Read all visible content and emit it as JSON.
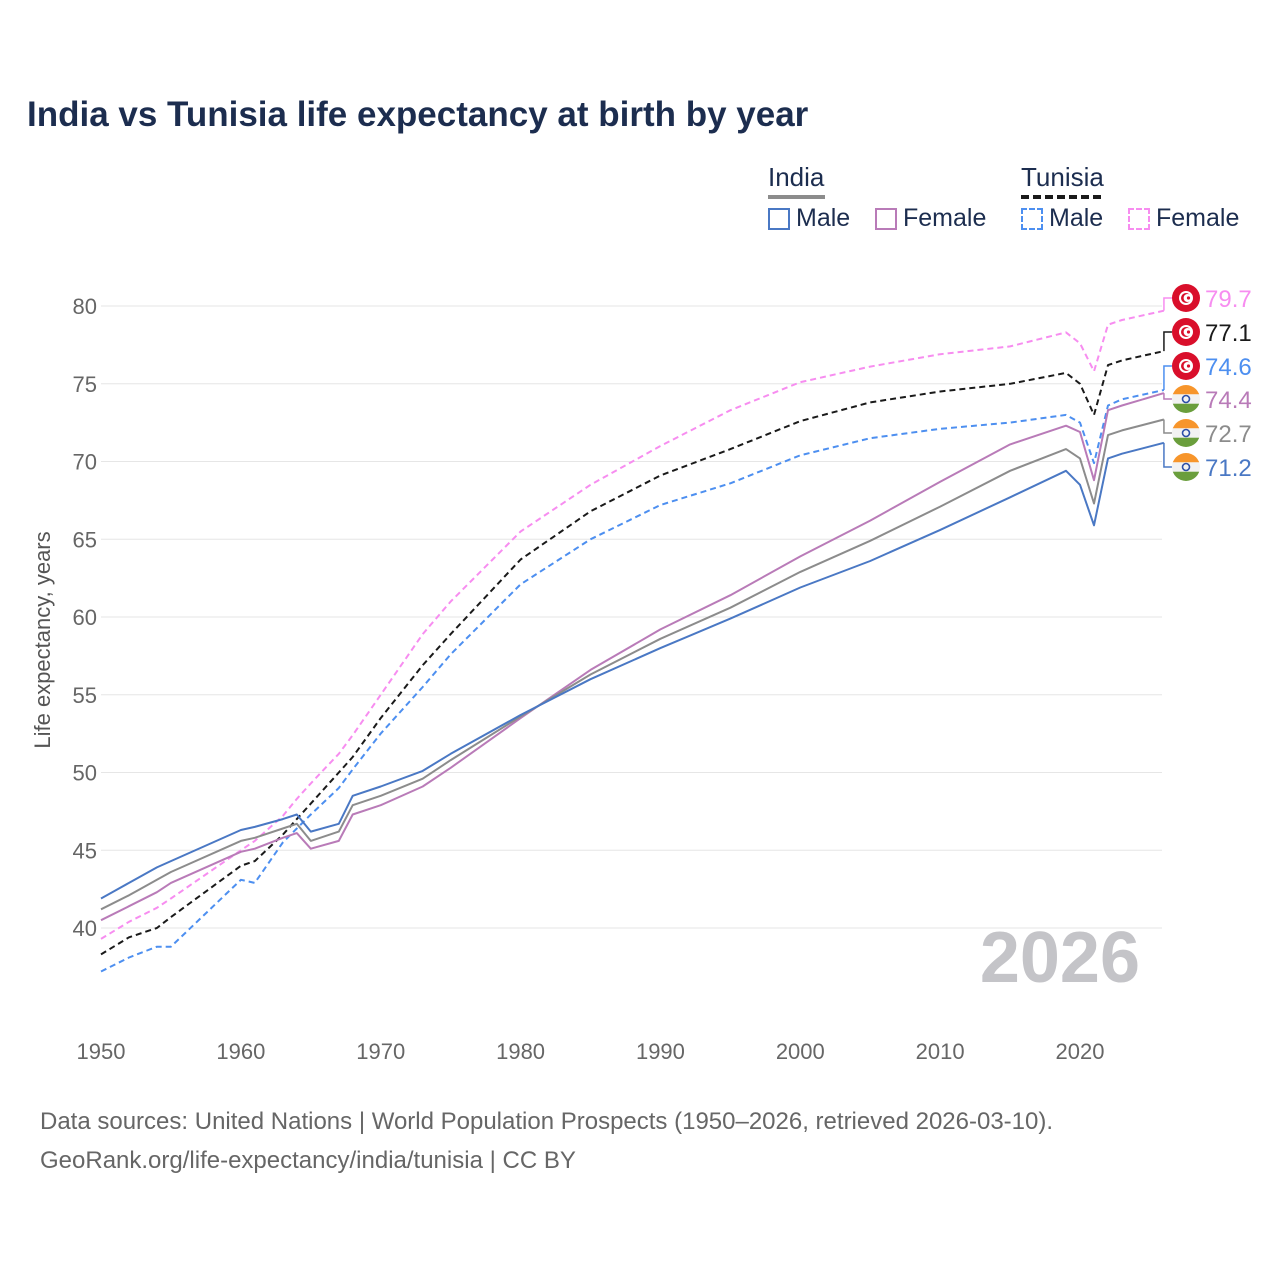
{
  "title": "India vs Tunisia life expectancy at birth by year",
  "legend": {
    "groups": [
      {
        "name": "India",
        "color": "#8c8c8c",
        "items": [
          {
            "label": "Male",
            "color": "#4a78c4"
          },
          {
            "label": "Female",
            "color": "#b97bb8"
          }
        ]
      },
      {
        "name": "Tunisia",
        "color": "#1a1a1a",
        "items": [
          {
            "label": "Male",
            "color": "#4d8ff0"
          },
          {
            "label": "Female",
            "color": "#f78df0"
          }
        ]
      }
    ]
  },
  "year_watermark": "2026",
  "footer": {
    "line1": "Data sources: United Nations | World Population Prospects (1950–2026, retrieved 2026-03-10).",
    "line2": "GeoRank.org/life-expectancy/india/tunisia | CC BY"
  },
  "chart_data": {
    "type": "line",
    "title": "India vs Tunisia life expectancy at birth by year",
    "xlabel": "",
    "ylabel": "Life expectancy, years",
    "xlim": [
      1950,
      2026
    ],
    "ylim": [
      35,
      82
    ],
    "grid": true,
    "xticks": [
      "1950",
      "1960",
      "1970",
      "1980",
      "1990",
      "2000",
      "2010",
      "2020"
    ],
    "yticks": [
      "40",
      "45",
      "50",
      "55",
      "60",
      "65",
      "70",
      "75",
      "80"
    ],
    "x": [
      1950,
      1952,
      1954,
      1955,
      1960,
      1961,
      1963,
      1964,
      1965,
      1967,
      1968,
      1970,
      1973,
      1975,
      1980,
      1985,
      1990,
      1995,
      2000,
      2005,
      2010,
      2015,
      2019,
      2020,
      2021,
      2022,
      2023,
      2026
    ],
    "series": [
      {
        "name": "Tunisia Female",
        "country": "Tunisia",
        "color": "#f78df0",
        "dashed": true,
        "end_label": "79.7",
        "values": [
          39.3,
          40.4,
          41.3,
          41.9,
          45.0,
          45.6,
          47.2,
          48.3,
          49.3,
          51.2,
          52.4,
          55.0,
          58.9,
          61.0,
          65.5,
          68.5,
          71.0,
          73.3,
          75.1,
          76.1,
          76.9,
          77.4,
          78.3,
          77.6,
          75.8,
          78.8,
          79.1,
          79.7
        ]
      },
      {
        "name": "Tunisia",
        "country": "Tunisia",
        "color": "#1a1a1a",
        "dashed": true,
        "end_label": "77.1",
        "values": [
          38.3,
          39.4,
          40.0,
          40.7,
          44.0,
          44.3,
          46.0,
          47.0,
          48.0,
          50.0,
          51.0,
          53.5,
          56.9,
          58.9,
          63.7,
          66.8,
          69.1,
          70.8,
          72.6,
          73.8,
          74.5,
          75.0,
          75.7,
          75.0,
          73.0,
          76.2,
          76.5,
          77.1
        ]
      },
      {
        "name": "Tunisia Male",
        "country": "Tunisia",
        "color": "#4d8ff0",
        "dashed": true,
        "end_label": "74.6",
        "values": [
          37.2,
          38.1,
          38.8,
          38.8,
          43.1,
          42.9,
          45.5,
          46.4,
          47.3,
          49.0,
          50.2,
          52.5,
          55.5,
          57.6,
          62.1,
          65.0,
          67.2,
          68.6,
          70.4,
          71.5,
          72.1,
          72.5,
          73.0,
          72.5,
          69.9,
          73.6,
          74.0,
          74.6
        ]
      },
      {
        "name": "India Female",
        "country": "India",
        "color": "#b97bb8",
        "dashed": false,
        "end_label": "74.4",
        "values": [
          40.5,
          41.4,
          42.3,
          42.9,
          44.9,
          45.1,
          45.8,
          46.1,
          45.1,
          45.6,
          47.3,
          47.9,
          49.1,
          50.3,
          53.5,
          56.6,
          59.2,
          61.4,
          63.9,
          66.2,
          68.7,
          71.1,
          72.3,
          71.9,
          68.8,
          73.3,
          73.6,
          74.4
        ]
      },
      {
        "name": "India",
        "country": "India",
        "color": "#8c8c8c",
        "dashed": false,
        "end_label": "72.7",
        "values": [
          41.2,
          42.1,
          43.1,
          43.6,
          45.6,
          45.8,
          46.4,
          46.7,
          45.6,
          46.2,
          47.9,
          48.5,
          49.6,
          50.8,
          53.6,
          56.3,
          58.6,
          60.6,
          62.9,
          64.9,
          67.1,
          69.4,
          70.8,
          70.2,
          67.3,
          71.7,
          72.0,
          72.7
        ]
      },
      {
        "name": "India Male",
        "country": "India",
        "color": "#4a78c4",
        "dashed": false,
        "end_label": "71.2",
        "values": [
          41.9,
          42.9,
          43.9,
          44.3,
          46.3,
          46.5,
          47.0,
          47.3,
          46.2,
          46.7,
          48.5,
          49.1,
          50.1,
          51.2,
          53.7,
          56.0,
          58.0,
          59.9,
          61.9,
          63.6,
          65.6,
          67.7,
          69.4,
          68.5,
          65.9,
          70.2,
          70.5,
          71.2
        ]
      }
    ]
  }
}
